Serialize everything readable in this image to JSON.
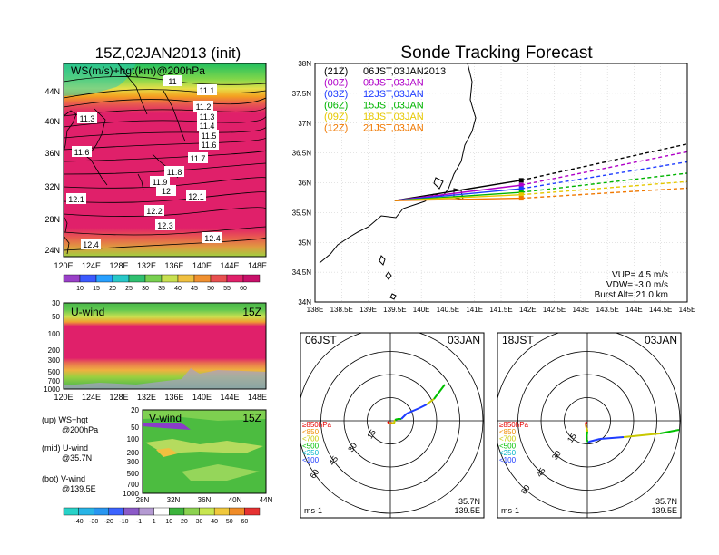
{
  "left": {
    "title": "15Z,02JAN2013 (init)",
    "map": {
      "label": "WS(m/s)+hgt(km)@200hPa",
      "lat_ticks": [
        "44N",
        "40N",
        "36N",
        "32N",
        "28N",
        "24N"
      ],
      "lon_ticks": [
        "120E",
        "124E",
        "128E",
        "132E",
        "136E",
        "140E",
        "144E",
        "148E"
      ],
      "contour_labels": [
        "11",
        "11.1",
        "11.2",
        "11.3",
        "11.3",
        "11.4",
        "11.5",
        "11.6",
        "11.6",
        "11.7",
        "11.8",
        "11.9",
        "12",
        "12.1",
        "12.1",
        "12.2",
        "12.3",
        "12.4",
        "12.4"
      ]
    },
    "ws_colorbar": {
      "ticks": [
        "10",
        "15",
        "20",
        "25",
        "30",
        "35",
        "40",
        "45",
        "50",
        "55",
        "60"
      ]
    },
    "uwind": {
      "label": "U-wind",
      "time": "15Z",
      "p_ticks": [
        "30",
        "50",
        "100",
        "200",
        "300",
        "500",
        "700",
        "1000"
      ],
      "lon_ticks": [
        "120E",
        "124E",
        "128E",
        "132E",
        "136E",
        "140E",
        "144E",
        "148E"
      ]
    },
    "vwind": {
      "label": "V-wind",
      "time": "15Z",
      "p_ticks": [
        "20",
        "50",
        "100",
        "200",
        "300",
        "500",
        "700",
        "1000"
      ],
      "lat_ticks": [
        "28N",
        "32N",
        "36N",
        "40N",
        "44N"
      ]
    },
    "legend_text": [
      "(up) WS+hgt",
      "@200hPa",
      "(mid) U-wind",
      "@35.7N",
      "(bot) V-wind",
      "@139.5E"
    ],
    "wind_colorbar": {
      "ticks": [
        "-40",
        "-30",
        "-20",
        "-10",
        "-1",
        "1",
        "10",
        "20",
        "30",
        "40",
        "50",
        "60"
      ]
    }
  },
  "right": {
    "title": "Sonde Tracking Forecast",
    "map": {
      "lat_ticks": [
        "38N",
        "37.5N",
        "37N",
        "36.5N",
        "36N",
        "35.5N",
        "35N",
        "34.5N",
        "34N"
      ],
      "lon_ticks": [
        "138E",
        "138.5E",
        "139E",
        "139.5E",
        "140E",
        "140.5E",
        "141E",
        "141.5E",
        "142E",
        "142.5E",
        "143E",
        "143.5E",
        "144E",
        "144.5E",
        "145E"
      ],
      "launches": [
        {
          "utc": "(21Z)",
          "jst": "06JST,03JAN2013",
          "color": "#000000"
        },
        {
          "utc": "(00Z)",
          "jst": "09JST,03JAN",
          "color": "#b000c8"
        },
        {
          "utc": "(03Z)",
          "jst": "12JST,03JAN",
          "color": "#1e3cff"
        },
        {
          "utc": "(06Z)",
          "jst": "15JST,03JAN",
          "color": "#00b400"
        },
        {
          "utc": "(09Z)",
          "jst": "18JST,03JAN",
          "color": "#e6c800"
        },
        {
          "utc": "(12Z)",
          "jst": "21JST,03JAN",
          "color": "#f07800"
        }
      ],
      "params": [
        "VUP= 4.5 m/s",
        "VDW= -3.0 m/s",
        "Burst Alt= 21.0 km"
      ]
    },
    "hodographs": [
      {
        "time": "06JST",
        "date": "03JAN"
      },
      {
        "time": "18JST",
        "date": "03JAN"
      }
    ],
    "hodo_common": {
      "ring_labels": [
        "15",
        "30",
        "45",
        "60"
      ],
      "pressure_legend": [
        {
          "text": "≥850hPa",
          "color": "#e60000"
        },
        {
          "text": "<850",
          "color": "#f08c00"
        },
        {
          "text": "<700",
          "color": "#c8c800"
        },
        {
          "text": "<500",
          "color": "#00c000"
        },
        {
          "text": "<250",
          "color": "#00b4c8"
        },
        {
          "text": "<100",
          "color": "#1e3cff"
        }
      ],
      "unit": "ms-1",
      "lat": "35.7N",
      "lon": "139.5E"
    }
  },
  "chart_data": [
    {
      "type": "heatmap",
      "title": "15Z,02JAN2013 (init)",
      "field": "WS(m/s)+hgt(km)@200hPa",
      "x_range_deg_E": [
        120,
        150
      ],
      "y_range_deg_N": [
        22,
        47
      ],
      "colorbar": [
        10,
        15,
        20,
        25,
        30,
        35,
        40,
        45,
        50,
        55,
        60
      ],
      "height_contours_km": [
        11,
        11.1,
        11.2,
        11.3,
        11.4,
        11.5,
        11.6,
        11.7,
        11.8,
        11.9,
        12,
        12.1,
        12.2,
        12.3,
        12.4
      ]
    },
    {
      "type": "heatmap",
      "title": "U-wind",
      "time": "15Z",
      "x_range_deg_E": [
        120,
        150
      ],
      "pressure_hPa": [
        30,
        1000
      ]
    },
    {
      "type": "heatmap",
      "title": "V-wind",
      "time": "15Z",
      "x_range_deg_N": [
        28,
        44
      ],
      "pressure_hPa": [
        20,
        1000
      ],
      "colorbar": [
        -40,
        -30,
        -20,
        -10,
        -1,
        1,
        10,
        20,
        30,
        40,
        50,
        60
      ]
    },
    {
      "type": "line",
      "title": "Sonde Tracking Forecast",
      "xlim": [
        138,
        145
      ],
      "ylim": [
        34,
        38
      ],
      "launch_point": [
        139.5,
        35.7
      ],
      "series": [
        {
          "name": "(21Z) 06JST,03JAN2013",
          "burst": [
            141.88,
            36.04
          ],
          "points": [
            [
              139.5,
              35.7
            ],
            [
              141.88,
              36.04
            ],
            [
              145.0,
              36.65
            ]
          ]
        },
        {
          "name": "(00Z) 09JST,03JAN",
          "burst": [
            141.88,
            35.96
          ],
          "points": [
            [
              139.5,
              35.7
            ],
            [
              141.88,
              35.96
            ],
            [
              145.0,
              36.52
            ]
          ]
        },
        {
          "name": "(03Z) 12JST,03JAN",
          "burst": [
            141.88,
            35.9
          ],
          "points": [
            [
              139.5,
              35.7
            ],
            [
              141.88,
              35.9
            ],
            [
              145.0,
              36.35
            ]
          ]
        },
        {
          "name": "(06Z) 15JST,03JAN",
          "burst": [
            141.88,
            35.84
          ],
          "points": [
            [
              139.5,
              35.7
            ],
            [
              141.88,
              35.84
            ],
            [
              145.0,
              36.16
            ]
          ]
        },
        {
          "name": "(09Z) 18JST,03JAN",
          "burst": [
            141.88,
            35.8
          ],
          "points": [
            [
              139.5,
              35.7
            ],
            [
              141.88,
              35.8
            ],
            [
              145.0,
              36.02
            ]
          ]
        },
        {
          "name": "(12Z) 21JST,03JAN",
          "burst": [
            141.88,
            35.74
          ],
          "points": [
            [
              139.5,
              35.7
            ],
            [
              141.88,
              35.74
            ],
            [
              145.0,
              35.91
            ]
          ]
        }
      ]
    }
  ]
}
